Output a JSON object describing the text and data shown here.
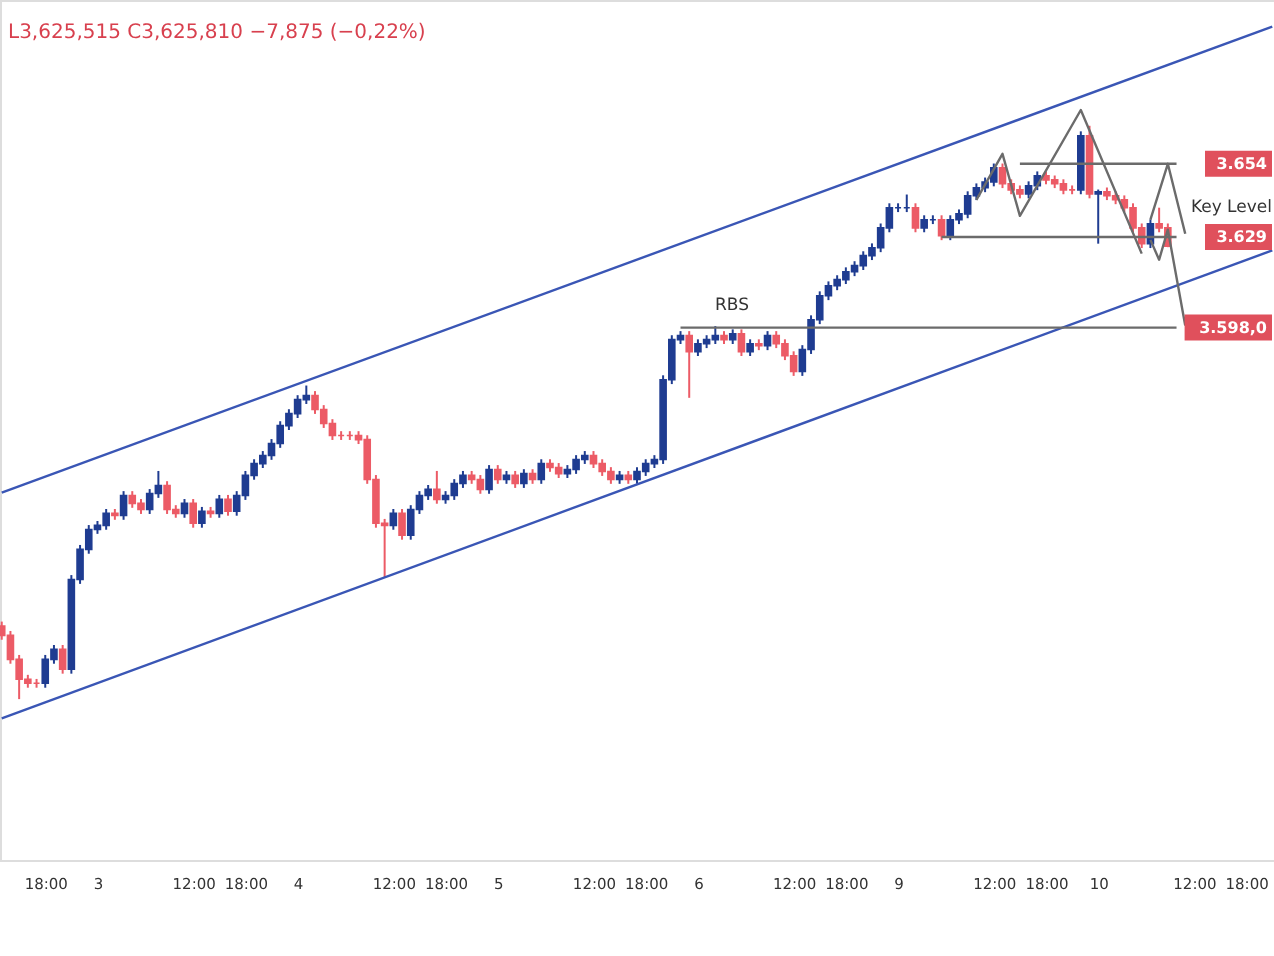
{
  "chart_data": {
    "type": "candlestick",
    "annotations": [
      "L3,625,515  C3,625,810  −7,875 (−0,22%)",
      "RBS",
      "Key Level"
    ],
    "categories": [
      null,
      null,
      null,
      null,
      null,
      "18:00",
      null,
      null,
      null,
      null,
      null,
      "3",
      null,
      null,
      null,
      null,
      null,
      null,
      null,
      null,
      null,
      null,
      "12:00",
      null,
      null,
      null,
      null,
      null,
      "18:00",
      null,
      null,
      null,
      null,
      null,
      "4",
      null,
      null,
      null,
      null,
      null,
      null,
      null,
      null,
      null,
      null,
      "12:00",
      null,
      null,
      null,
      null,
      null,
      "18:00",
      null,
      null,
      null,
      null,
      null,
      "5",
      null,
      null,
      null,
      null,
      null,
      null,
      null,
      null,
      null,
      null,
      "12:00",
      null,
      null,
      null,
      null,
      null,
      "18:00",
      null,
      null,
      null,
      null,
      null,
      "6",
      null,
      null,
      null,
      null,
      null,
      null,
      null,
      null,
      null,
      null,
      "12:00",
      null,
      null,
      null,
      null,
      null,
      "18:00",
      null,
      null,
      null,
      null,
      null,
      "9",
      null,
      null,
      null,
      null,
      null,
      null,
      null,
      null,
      null,
      null,
      "12:00",
      null,
      null,
      null,
      null,
      null,
      "18:00",
      null,
      null,
      null,
      null,
      null,
      "10",
      null,
      null,
      null,
      null,
      null,
      null,
      null,
      null,
      null,
      null,
      "12:00",
      null,
      null,
      null,
      null,
      null,
      "18:00",
      null,
      null,
      null
    ],
    "ohlc": [
      [
        3496,
        3497.5,
        3491.3,
        3492.8
      ],
      [
        3492.8,
        3494.3,
        3483.1,
        3484.6
      ],
      [
        3484.6,
        3486.1,
        3471,
        3477.8
      ],
      [
        3477.8,
        3479.3,
        3474.9,
        3476.4
      ],
      [
        3476.4,
        3477.9,
        3474.9,
        3476.4
      ],
      [
        3476.4,
        3486.1,
        3474.9,
        3484.6
      ],
      [
        3484.6,
        3489.5,
        3483.1,
        3488
      ],
      [
        3488,
        3489.5,
        3479.7,
        3481.2
      ],
      [
        3481.2,
        3513.4,
        3479.7,
        3511.9
      ],
      [
        3511.9,
        3523.7,
        3510.4,
        3522.2
      ],
      [
        3522.2,
        3530.5,
        3520.7,
        3529
      ],
      [
        3529,
        3531.9,
        3527.5,
        3530.4
      ],
      [
        3530.4,
        3536,
        3528.9,
        3534.5
      ],
      [
        3534.5,
        3536,
        3532.3,
        3533.8
      ],
      [
        3533.8,
        3542.1,
        3532.3,
        3540.6
      ],
      [
        3540.6,
        3542.1,
        3536.4,
        3537.9
      ],
      [
        3537.9,
        3539.4,
        3534.3,
        3535.8
      ],
      [
        3535.8,
        3542.8,
        3534.3,
        3541.3
      ],
      [
        3541.3,
        3549,
        3539.8,
        3544
      ],
      [
        3544,
        3545.5,
        3534.3,
        3535.8
      ],
      [
        3535.8,
        3537.3,
        3533,
        3534.5
      ],
      [
        3534.5,
        3539.4,
        3533,
        3537.9
      ],
      [
        3537.9,
        3539.4,
        3529.6,
        3531.1
      ],
      [
        3531.1,
        3536.7,
        3529.6,
        3535.2
      ],
      [
        3535.2,
        3536.7,
        3533,
        3534.5
      ],
      [
        3534.5,
        3540.8,
        3533,
        3539.3
      ],
      [
        3539.3,
        3540.8,
        3533.7,
        3535.2
      ],
      [
        3535.2,
        3542.1,
        3533.7,
        3540.6
      ],
      [
        3540.6,
        3549,
        3539.1,
        3547.5
      ],
      [
        3547.5,
        3553,
        3546,
        3551.5
      ],
      [
        3551.5,
        3555.8,
        3550,
        3554.3
      ],
      [
        3554.3,
        3559.9,
        3552.8,
        3558.4
      ],
      [
        3558.4,
        3566,
        3556.9,
        3564.5
      ],
      [
        3564.5,
        3570.1,
        3563,
        3568.6
      ],
      [
        3568.6,
        3574.9,
        3567.1,
        3573.4
      ],
      [
        3573.4,
        3578.2,
        3571.9,
        3574.8
      ],
      [
        3574.8,
        3576.3,
        3568.5,
        3570
      ],
      [
        3570,
        3571.5,
        3563.7,
        3565.2
      ],
      [
        3565.2,
        3566.7,
        3559.6,
        3561.1
      ],
      [
        3561.1,
        3562.6,
        3559.6,
        3561.1
      ],
      [
        3561.1,
        3562.6,
        3559.6,
        3561.1
      ],
      [
        3561.1,
        3562.6,
        3558.2,
        3559.7
      ],
      [
        3559.7,
        3561.2,
        3544.6,
        3546.1
      ],
      [
        3546.1,
        3547.6,
        3529.6,
        3531.1
      ],
      [
        3531.1,
        3532.6,
        3512.6,
        3530.4
      ],
      [
        3530.4,
        3536,
        3528.9,
        3534.5
      ],
      [
        3534.5,
        3536,
        3525.5,
        3527
      ],
      [
        3527,
        3537.3,
        3525.5,
        3535.8
      ],
      [
        3535.8,
        3542.1,
        3534.3,
        3540.6
      ],
      [
        3540.6,
        3544.2,
        3539.1,
        3542.7
      ],
      [
        3542.7,
        3549,
        3537.8,
        3539.3
      ],
      [
        3539.3,
        3542.1,
        3537.8,
        3540.6
      ],
      [
        3540.6,
        3546.2,
        3539.1,
        3544.7
      ],
      [
        3544.7,
        3549,
        3543.2,
        3547.5
      ],
      [
        3547.5,
        3549,
        3544.6,
        3546.1
      ],
      [
        3546.1,
        3547.6,
        3541.2,
        3542.7
      ],
      [
        3542.7,
        3551,
        3541.2,
        3549.5
      ],
      [
        3549.5,
        3551,
        3544.6,
        3546.1
      ],
      [
        3546.1,
        3549,
        3544.6,
        3547.5
      ],
      [
        3547.5,
        3549,
        3543.2,
        3544.7
      ],
      [
        3544.7,
        3549.6,
        3543.2,
        3548.1
      ],
      [
        3548.1,
        3549.6,
        3544.6,
        3546.1
      ],
      [
        3546.1,
        3553,
        3544.6,
        3551.5
      ],
      [
        3551.5,
        3553,
        3548.7,
        3550.2
      ],
      [
        3550.2,
        3551.7,
        3546.6,
        3548.1
      ],
      [
        3548.1,
        3551,
        3546.6,
        3549.5
      ],
      [
        3549.5,
        3554.4,
        3548,
        3552.9
      ],
      [
        3552.9,
        3555.8,
        3551.4,
        3554.3
      ],
      [
        3554.3,
        3555.8,
        3550,
        3551.5
      ],
      [
        3551.5,
        3553,
        3547.3,
        3548.8
      ],
      [
        3548.8,
        3550.3,
        3544.6,
        3546.1
      ],
      [
        3546.1,
        3549,
        3544.6,
        3547.5
      ],
      [
        3547.5,
        3549,
        3544.6,
        3546.1
      ],
      [
        3546.1,
        3550.3,
        3544.6,
        3548.8
      ],
      [
        3548.8,
        3553,
        3547.3,
        3551.5
      ],
      [
        3551.5,
        3554.4,
        3550,
        3552.9
      ],
      [
        3552.9,
        3581.7,
        3551.4,
        3580.2
      ],
      [
        3580.2,
        3595.4,
        3578.7,
        3593.9
      ],
      [
        3593.9,
        3596.8,
        3592.4,
        3595.3
      ],
      [
        3595.3,
        3596.8,
        3574,
        3589.8
      ],
      [
        3589.8,
        3594,
        3588.3,
        3592.5
      ],
      [
        3592.5,
        3595.4,
        3591,
        3593.9
      ],
      [
        3593.9,
        3598.5,
        3592.4,
        3595.3
      ],
      [
        3595.3,
        3596.8,
        3592.4,
        3593.9
      ],
      [
        3593.9,
        3597.4,
        3592.4,
        3595.9
      ],
      [
        3595.9,
        3597.4,
        3588.3,
        3589.8
      ],
      [
        3589.8,
        3594,
        3588.3,
        3592.5
      ],
      [
        3592.5,
        3594,
        3590.3,
        3591.8
      ],
      [
        3591.8,
        3596.8,
        3590.3,
        3595.3
      ],
      [
        3595.3,
        3596.8,
        3591,
        3592.5
      ],
      [
        3592.5,
        3594,
        3586.9,
        3588.4
      ],
      [
        3588.4,
        3589.9,
        3581.5,
        3583
      ],
      [
        3583,
        3592,
        3581.5,
        3590.5
      ],
      [
        3590.5,
        3602.2,
        3589,
        3600.7
      ],
      [
        3600.7,
        3610.4,
        3599.2,
        3608.9
      ],
      [
        3608.9,
        3613.8,
        3607.4,
        3612.3
      ],
      [
        3612.3,
        3615.9,
        3610.8,
        3614.4
      ],
      [
        3614.4,
        3618.6,
        3612.9,
        3617.1
      ],
      [
        3617.1,
        3620.7,
        3615.6,
        3619.2
      ],
      [
        3619.2,
        3624.1,
        3617.7,
        3622.6
      ],
      [
        3622.6,
        3626.8,
        3621.1,
        3625.3
      ],
      [
        3625.3,
        3633.6,
        3623.8,
        3632.1
      ],
      [
        3632.1,
        3640.5,
        3630.6,
        3639
      ],
      [
        3639,
        3640.5,
        3637.5,
        3639
      ],
      [
        3639,
        3643.5,
        3637.5,
        3639
      ],
      [
        3639,
        3640.5,
        3630.6,
        3632.1
      ],
      [
        3632.1,
        3636.4,
        3630.6,
        3634.9
      ],
      [
        3634.9,
        3636.4,
        3633.4,
        3634.9
      ],
      [
        3634.9,
        3636.4,
        3627.9,
        3629.4
      ],
      [
        3629.4,
        3636.4,
        3627.9,
        3634.9
      ],
      [
        3634.9,
        3638.4,
        3633.4,
        3636.9
      ],
      [
        3636.9,
        3644.6,
        3635.4,
        3643.1
      ],
      [
        3643.1,
        3647.3,
        3641.6,
        3645.8
      ],
      [
        3645.8,
        3649.3,
        3644.3,
        3647.8
      ],
      [
        3647.8,
        3654.1,
        3646.3,
        3652.6
      ],
      [
        3652.6,
        3654.1,
        3645.7,
        3647.2
      ],
      [
        3647.2,
        3648.7,
        3643.6,
        3645.1
      ],
      [
        3645.1,
        3646.6,
        3642.2,
        3643.7
      ],
      [
        3643.7,
        3648,
        3642.2,
        3646.5
      ],
      [
        3646.5,
        3651.4,
        3645,
        3649.9
      ],
      [
        3649.9,
        3651.4,
        3647,
        3648.5
      ],
      [
        3648.5,
        3650,
        3645.7,
        3647.2
      ],
      [
        3647.2,
        3648.7,
        3643.6,
        3645.1
      ],
      [
        3645.1,
        3646.6,
        3643.6,
        3645.1
      ],
      [
        3645.1,
        3665.1,
        3643.6,
        3663.6
      ],
      [
        3663.6,
        3667,
        3642.2,
        3643.7
      ],
      [
        3643.7,
        3645.2,
        3626.7,
        3644.4
      ],
      [
        3644.4,
        3645.9,
        3641.6,
        3643.1
      ],
      [
        3643.1,
        3644.6,
        3640.2,
        3641.7
      ],
      [
        3641.7,
        3643.2,
        3637.5,
        3639
      ],
      [
        3639,
        3640.5,
        3630.6,
        3632.1
      ],
      [
        3632.1,
        3633.6,
        3625.2,
        3626.7
      ],
      [
        3626.7,
        3635,
        3625.2,
        3633.5
      ],
      [
        3633.5,
        3639,
        3630.6,
        3632.1
      ],
      [
        3632.1,
        3633.6,
        3625.5,
        3625.8
      ],
      null,
      null,
      null,
      null,
      null,
      null,
      null,
      null,
      null,
      null,
      null,
      null
    ],
    "colors": [
      "#ec5b66",
      "#ec5b66",
      "#ec5b66",
      "#ec5b66",
      "#ec5b66",
      "#1f3c91",
      "#1f3c91",
      "#ec5b66",
      "#1f3c91",
      "#1f3c91",
      "#1f3c91",
      "#1f3c91",
      "#1f3c91",
      "#ec5b66",
      "#1f3c91",
      "#ec5b66",
      "#ec5b66",
      "#1f3c91",
      "#1f3c91",
      "#ec5b66",
      "#ec5b66",
      "#1f3c91",
      "#ec5b66",
      "#1f3c91",
      "#ec5b66",
      "#1f3c91",
      "#ec5b66",
      "#1f3c91",
      "#1f3c91",
      "#1f3c91",
      "#1f3c91",
      "#1f3c91",
      "#1f3c91",
      "#1f3c91",
      "#1f3c91",
      "#1f3c91",
      "#ec5b66",
      "#ec5b66",
      "#ec5b66",
      "#ec5b66",
      "#ec5b66",
      "#ec5b66",
      "#ec5b66",
      "#ec5b66",
      "#ec5b66",
      "#1f3c91",
      "#ec5b66",
      "#1f3c91",
      "#1f3c91",
      "#1f3c91",
      "#ec5b66",
      "#1f3c91",
      "#1f3c91",
      "#1f3c91",
      "#ec5b66",
      "#ec5b66",
      "#1f3c91",
      "#ec5b66",
      "#1f3c91",
      "#ec5b66",
      "#1f3c91",
      "#ec5b66",
      "#1f3c91",
      "#ec5b66",
      "#ec5b66",
      "#1f3c91",
      "#1f3c91",
      "#1f3c91",
      "#ec5b66",
      "#ec5b66",
      "#ec5b66",
      "#1f3c91",
      "#ec5b66",
      "#1f3c91",
      "#1f3c91",
      "#1f3c91",
      "#1f3c91",
      "#1f3c91",
      "#1f3c91",
      "#ec5b66",
      "#1f3c91",
      "#1f3c91",
      "#1f3c91",
      "#ec5b66",
      "#1f3c91",
      "#ec5b66",
      "#1f3c91",
      "#ec5b66",
      "#1f3c91",
      "#ec5b66",
      "#ec5b66",
      "#ec5b66",
      "#1f3c91",
      "#1f3c91",
      "#1f3c91",
      "#1f3c91",
      "#1f3c91",
      "#1f3c91",
      "#1f3c91",
      "#1f3c91",
      "#1f3c91",
      "#1f3c91",
      "#1f3c91",
      "#1f3c91",
      "#1f3c91",
      "#ec5b66",
      "#1f3c91",
      "#1f3c91",
      "#ec5b66",
      "#1f3c91",
      "#1f3c91",
      "#1f3c91",
      "#1f3c91",
      "#1f3c91",
      "#1f3c91",
      "#ec5b66",
      "#ec5b66",
      "#ec5b66",
      "#1f3c91",
      "#1f3c91",
      "#ec5b66",
      "#ec5b66",
      "#ec5b66",
      "#ec5b66",
      "#1f3c91",
      "#ec5b66",
      "#1f3c91",
      "#ec5b66",
      "#ec5b66",
      "#ec5b66",
      "#ec5b66",
      "#ec5b66",
      "#1f3c91",
      "#ec5b66",
      "#ec5b66",
      null,
      null,
      null,
      null,
      null,
      null,
      null,
      null,
      null,
      null,
      null,
      null
    ],
    "series": [
      {
        "type": "line",
        "color": "#3a56b5",
        "values": [
          3541.6,
          null,
          null,
          null,
          null,
          null,
          null,
          null,
          null,
          null,
          null,
          null,
          null,
          null,
          null,
          null,
          null,
          null,
          null,
          null,
          null,
          null,
          null,
          null,
          null,
          null,
          null,
          null,
          null,
          null,
          null,
          null,
          null,
          null,
          null,
          null,
          null,
          null,
          null,
          null,
          null,
          null,
          null,
          null,
          null,
          null,
          null,
          null,
          null,
          null,
          null,
          null,
          null,
          null,
          null,
          null,
          null,
          null,
          null,
          null,
          null,
          null,
          null,
          null,
          null,
          null,
          null,
          null,
          null,
          null,
          null,
          null,
          null,
          null,
          null,
          null,
          null,
          null,
          null,
          null,
          null,
          null,
          null,
          null,
          null,
          null,
          null,
          null,
          null,
          null,
          null,
          null,
          null,
          null,
          null,
          null,
          null,
          null,
          null,
          null,
          null,
          null,
          null,
          null,
          null,
          null,
          null,
          null,
          null,
          null,
          null,
          null,
          null,
          null,
          null,
          null,
          null,
          null,
          null,
          null,
          null,
          null,
          null,
          null,
          null,
          null,
          null,
          null,
          null,
          null,
          null,
          null,
          null,
          null,
          null,
          null,
          null,
          null,
          null,
          null,
          null,
          null,
          null,
          null,
          null,
          null,
          3700.9
        ]
      },
      {
        "type": "line",
        "color": "#3a56b5",
        "values": [
          3464.4,
          null,
          null,
          null,
          null,
          null,
          null,
          null,
          null,
          null,
          null,
          null,
          null,
          null,
          null,
          null,
          null,
          null,
          null,
          null,
          null,
          null,
          null,
          null,
          null,
          null,
          null,
          null,
          null,
          null,
          null,
          null,
          null,
          null,
          null,
          null,
          null,
          null,
          null,
          null,
          null,
          null,
          null,
          null,
          null,
          null,
          null,
          null,
          null,
          null,
          null,
          null,
          null,
          null,
          null,
          null,
          null,
          null,
          null,
          null,
          null,
          null,
          null,
          null,
          null,
          null,
          null,
          null,
          null,
          null,
          null,
          null,
          null,
          null,
          null,
          null,
          null,
          null,
          null,
          null,
          null,
          null,
          null,
          null,
          null,
          null,
          null,
          null,
          null,
          null,
          null,
          null,
          null,
          null,
          null,
          null,
          null,
          null,
          null,
          null,
          null,
          null,
          null,
          null,
          null,
          null,
          null,
          null,
          null,
          null,
          null,
          null,
          null,
          null,
          null,
          null,
          null,
          null,
          null,
          null,
          null,
          null,
          null,
          null,
          null,
          null,
          null,
          null,
          null,
          null,
          null,
          null,
          null,
          null,
          null,
          null,
          null,
          null,
          null,
          null,
          null,
          null,
          null,
          null,
          null,
          null,
          3624.4
        ]
      },
      {
        "type": "line",
        "color": "#6b6b6b",
        "values": [
          null,
          null,
          null,
          null,
          null,
          null,
          null,
          null,
          null,
          null,
          null,
          null,
          null,
          null,
          null,
          null,
          null,
          null,
          null,
          null,
          null,
          null,
          null,
          null,
          null,
          null,
          null,
          null,
          null,
          null,
          null,
          null,
          null,
          null,
          null,
          null,
          null,
          null,
          null,
          null,
          null,
          null,
          null,
          null,
          null,
          null,
          null,
          null,
          null,
          null,
          null,
          null,
          null,
          null,
          null,
          null,
          null,
          null,
          null,
          null,
          null,
          null,
          null,
          null,
          null,
          null,
          null,
          null,
          null,
          null,
          null,
          null,
          null,
          null,
          null,
          null,
          null,
          null,
          null,
          null,
          null,
          null,
          null,
          null,
          null,
          null,
          null,
          null,
          null,
          null,
          null,
          null,
          null,
          null,
          null,
          null,
          null,
          null,
          null,
          null,
          null,
          null,
          null,
          null,
          null,
          null,
          null,
          null,
          null,
          null,
          null,
          null,
          null,
          null,
          null,
          null,
          null,
          3654,
          null,
          null,
          null,
          null,
          null,
          null,
          null,
          null,
          null,
          null,
          null,
          null,
          null,
          null,
          null,
          null,
          null,
          3654,
          null,
          null,
          null,
          null,
          null,
          null,
          null,
          null,
          null,
          null,
          null
        ]
      },
      {
        "type": "line",
        "color": "#6b6b6b",
        "values": [
          null,
          null,
          null,
          null,
          null,
          null,
          null,
          null,
          null,
          null,
          null,
          null,
          null,
          null,
          null,
          null,
          null,
          null,
          null,
          null,
          null,
          null,
          null,
          null,
          null,
          null,
          null,
          null,
          null,
          null,
          null,
          null,
          null,
          null,
          null,
          null,
          null,
          null,
          null,
          null,
          null,
          null,
          null,
          null,
          null,
          null,
          null,
          null,
          null,
          null,
          null,
          null,
          null,
          null,
          null,
          null,
          null,
          null,
          null,
          null,
          null,
          null,
          null,
          null,
          null,
          null,
          null,
          null,
          null,
          null,
          null,
          null,
          null,
          null,
          null,
          null,
          null,
          null,
          null,
          null,
          null,
          null,
          null,
          null,
          null,
          null,
          null,
          null,
          null,
          null,
          null,
          null,
          null,
          null,
          null,
          null,
          null,
          null,
          null,
          null,
          null,
          null,
          null,
          null,
          null,
          null,
          null,
          null,
          3629,
          null,
          null,
          null,
          null,
          null,
          null,
          null,
          null,
          null,
          null,
          null,
          null,
          null,
          null,
          null,
          null,
          null,
          null,
          null,
          null,
          null,
          null,
          null,
          null,
          null,
          null,
          3629,
          null,
          null,
          null,
          null,
          null,
          null,
          null,
          null,
          null,
          null,
          null
        ]
      },
      {
        "type": "line",
        "color": "#6b6b6b",
        "values": [
          null,
          null,
          null,
          null,
          null,
          null,
          null,
          null,
          null,
          null,
          null,
          null,
          null,
          null,
          null,
          null,
          null,
          null,
          null,
          null,
          null,
          null,
          null,
          null,
          null,
          null,
          null,
          null,
          null,
          null,
          null,
          null,
          null,
          null,
          null,
          null,
          null,
          null,
          null,
          null,
          null,
          null,
          null,
          null,
          null,
          null,
          null,
          null,
          null,
          null,
          null,
          null,
          null,
          null,
          null,
          null,
          null,
          null,
          null,
          null,
          null,
          null,
          null,
          null,
          null,
          null,
          null,
          null,
          null,
          null,
          null,
          null,
          null,
          null,
          null,
          null,
          null,
          null,
          3598,
          null,
          null,
          null,
          null,
          null,
          null,
          null,
          null,
          null,
          null,
          null,
          null,
          null,
          null,
          null,
          null,
          null,
          null,
          null,
          null,
          null,
          null,
          null,
          null,
          null,
          null,
          null,
          null,
          null,
          null,
          null,
          null,
          null,
          null,
          null,
          null,
          null,
          null,
          null,
          null,
          null,
          null,
          null,
          null,
          null,
          null,
          null,
          null,
          null,
          null,
          null,
          null,
          null,
          null,
          null,
          null,
          3598,
          null,
          null,
          null,
          null,
          null,
          null,
          null,
          null,
          null,
          null,
          null
        ]
      },
      {
        "type": "line",
        "color": "#6b6b6b",
        "values": [
          null,
          null,
          null,
          null,
          null,
          null,
          null,
          null,
          null,
          null,
          null,
          null,
          null,
          null,
          null,
          null,
          null,
          null,
          null,
          null,
          null,
          null,
          null,
          null,
          null,
          null,
          null,
          null,
          null,
          null,
          null,
          null,
          null,
          null,
          null,
          null,
          null,
          null,
          null,
          null,
          null,
          null,
          null,
          null,
          null,
          null,
          null,
          null,
          null,
          null,
          null,
          null,
          null,
          null,
          null,
          null,
          null,
          null,
          null,
          null,
          null,
          null,
          null,
          null,
          null,
          null,
          null,
          null,
          null,
          null,
          null,
          null,
          null,
          null,
          null,
          null,
          null,
          null,
          null,
          null,
          null,
          null,
          null,
          null,
          null,
          null,
          null,
          null,
          null,
          null,
          null,
          null,
          null,
          null,
          null,
          null,
          null,
          null,
          null,
          null,
          null,
          null,
          null,
          null,
          null,
          null,
          null,
          null,
          null,
          null,
          null,
          null,
          3641.7,
          null,
          null,
          3657.4,
          null,
          3636.2,
          null,
          null,
          null,
          null,
          null,
          null,
          3672.4,
          null,
          null,
          null,
          null,
          null,
          null,
          3623.3,
          null,
          null,
          null,
          null,
          null,
          null,
          null,
          null,
          null,
          null,
          null,
          null,
          null,
          null,
          null
        ]
      },
      {
        "type": "line",
        "color": "#6b6b6b",
        "values": [
          null,
          null,
          null,
          null,
          null,
          null,
          null,
          null,
          null,
          null,
          null,
          null,
          null,
          null,
          null,
          null,
          null,
          null,
          null,
          null,
          null,
          null,
          null,
          null,
          null,
          null,
          null,
          null,
          null,
          null,
          null,
          null,
          null,
          null,
          null,
          null,
          null,
          null,
          null,
          null,
          null,
          null,
          null,
          null,
          null,
          null,
          null,
          null,
          null,
          null,
          null,
          null,
          null,
          null,
          null,
          null,
          null,
          null,
          null,
          null,
          null,
          null,
          null,
          null,
          null,
          null,
          null,
          null,
          null,
          null,
          null,
          null,
          null,
          null,
          null,
          null,
          null,
          null,
          null,
          null,
          null,
          null,
          null,
          null,
          null,
          null,
          null,
          null,
          null,
          null,
          null,
          null,
          null,
          null,
          null,
          null,
          null,
          null,
          null,
          null,
          null,
          null,
          null,
          null,
          null,
          null,
          null,
          null,
          null,
          null,
          null,
          null,
          null,
          null,
          null,
          null,
          null,
          null,
          null,
          null,
          null,
          null,
          null,
          null,
          null,
          null,
          null,
          null,
          null,
          null,
          null,
          null,
          3634.9,
          null,
          3654,
          null,
          3630.1,
          null,
          null,
          null,
          null,
          null,
          null,
          null,
          null,
          null,
          null
        ]
      },
      {
        "type": "line",
        "color": "#6b6b6b",
        "values": [
          null,
          null,
          null,
          null,
          null,
          null,
          null,
          null,
          null,
          null,
          null,
          null,
          null,
          null,
          null,
          null,
          null,
          null,
          null,
          null,
          null,
          null,
          null,
          null,
          null,
          null,
          null,
          null,
          null,
          null,
          null,
          null,
          null,
          null,
          null,
          null,
          null,
          null,
          null,
          null,
          null,
          null,
          null,
          null,
          null,
          null,
          null,
          null,
          null,
          null,
          null,
          null,
          null,
          null,
          null,
          null,
          null,
          null,
          null,
          null,
          null,
          null,
          null,
          null,
          null,
          null,
          null,
          null,
          null,
          null,
          null,
          null,
          null,
          null,
          null,
          null,
          null,
          null,
          null,
          null,
          null,
          null,
          null,
          null,
          null,
          null,
          null,
          null,
          null,
          null,
          null,
          null,
          null,
          null,
          null,
          null,
          null,
          null,
          null,
          null,
          null,
          null,
          null,
          null,
          null,
          null,
          null,
          null,
          null,
          null,
          null,
          null,
          null,
          null,
          null,
          null,
          null,
          null,
          null,
          null,
          null,
          null,
          null,
          null,
          null,
          null,
          null,
          null,
          null,
          null,
          null,
          null,
          3628,
          3621.2,
          3631.5,
          null,
          3598.7,
          null,
          null,
          null,
          null,
          null,
          null,
          null,
          null,
          null,
          null
        ]
      }
    ],
    "ylim": [
      3416,
      3710
    ],
    "yticks": [
      {
        "value": 3654,
        "label": "3.654"
      },
      {
        "value": 3629,
        "label": "3.629"
      },
      {
        "value": 3598,
        "label": "3.598,0"
      }
    ],
    "grid": false
  }
}
